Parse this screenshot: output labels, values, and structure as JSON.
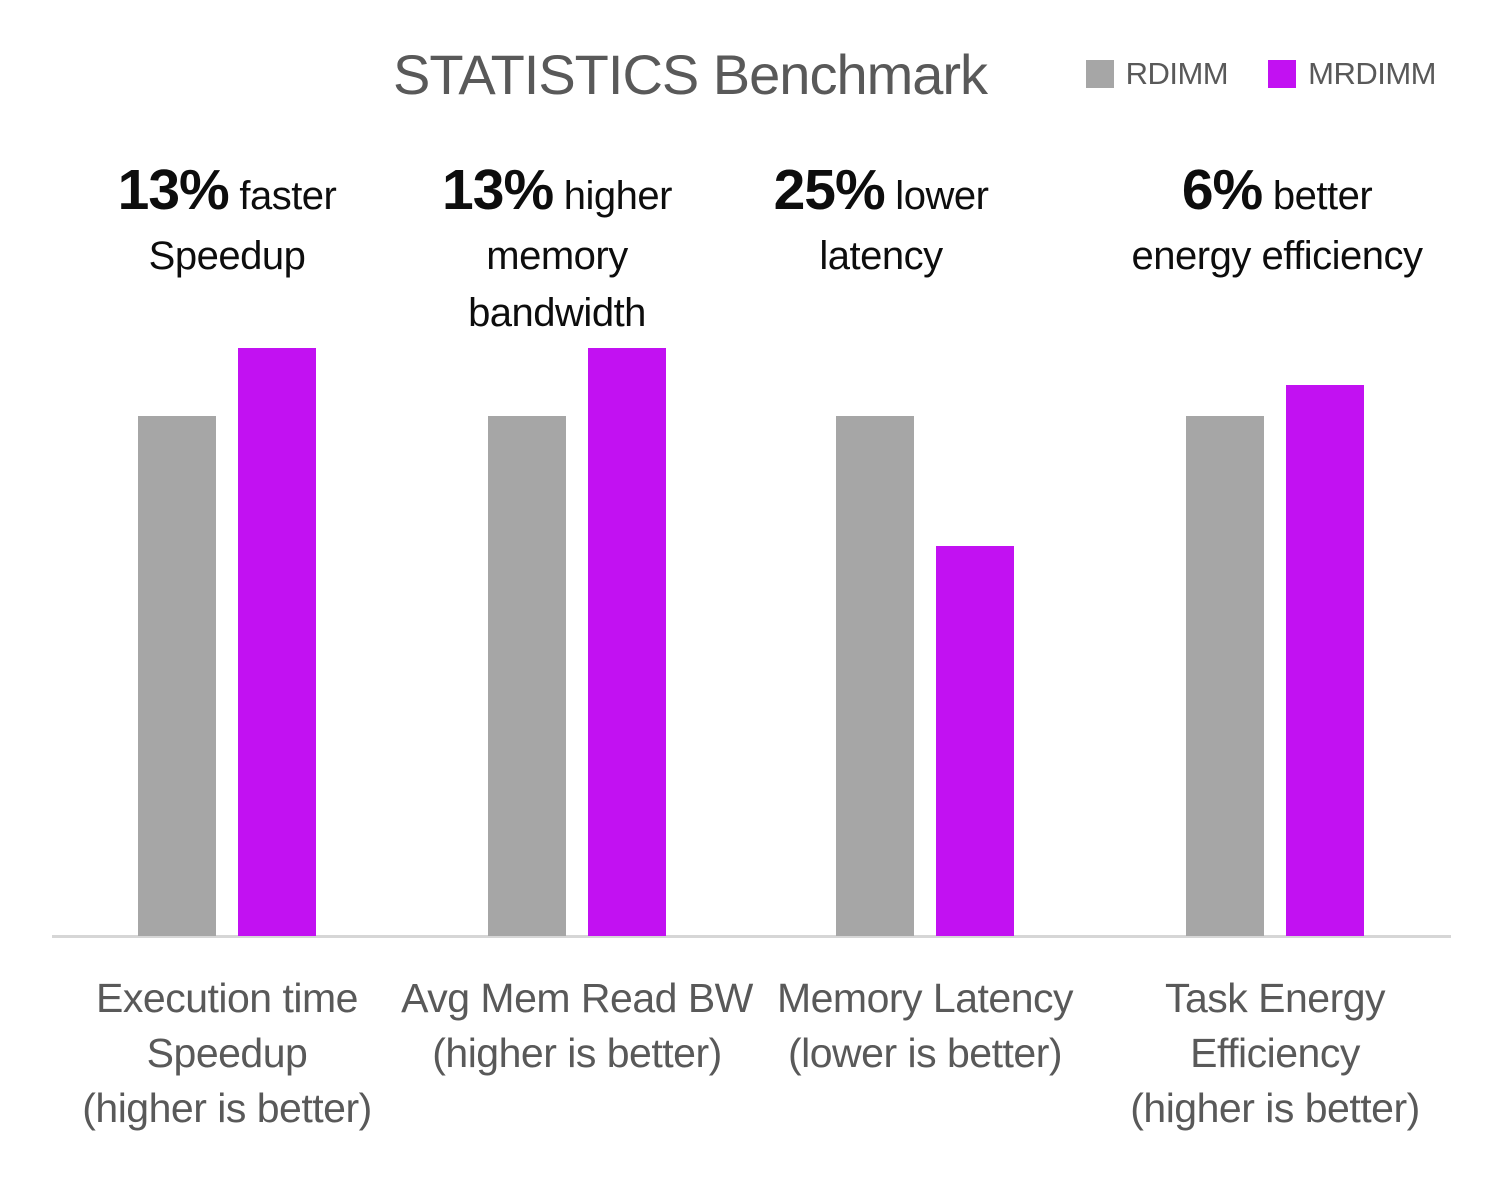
{
  "chart_data": {
    "type": "bar",
    "title": "STATISTICS Benchmark",
    "legend_position": "top-right",
    "grid": false,
    "y_axis_visible": false,
    "value_basis": "normalized, RDIMM = 1.0",
    "ylim": [
      0,
      1.2
    ],
    "categories": [
      "Execution time Speedup (higher is better)",
      "Avg Mem Read BW (higher is better)",
      "Memory Latency (lower is better)",
      "Task Energy Efficiency (higher is better)"
    ],
    "categories_lines": [
      [
        "Execution time",
        "Speedup",
        "(higher is better)"
      ],
      [
        "Avg Mem Read BW",
        "(higher is better)"
      ],
      [
        "Memory Latency",
        "(lower is better)"
      ],
      [
        "Task Energy",
        "Efficiency",
        "(higher is better)"
      ]
    ],
    "series": [
      {
        "name": "RDIMM",
        "color": "#a6a6a6",
        "values": [
          1.0,
          1.0,
          1.0,
          1.0
        ]
      },
      {
        "name": "MRDIMM",
        "color": "#c211f2",
        "values": [
          1.13,
          1.13,
          0.75,
          1.06
        ]
      }
    ],
    "annotations": [
      {
        "stat": "13%",
        "qualifier": "faster",
        "detail_lines": [
          "Speedup"
        ]
      },
      {
        "stat": "13%",
        "qualifier": "higher",
        "detail_lines": [
          "memory",
          "bandwidth"
        ]
      },
      {
        "stat": "25%",
        "qualifier": "lower",
        "detail_lines": [
          "latency"
        ]
      },
      {
        "stat": "6%",
        "qualifier": "better",
        "detail_lines": [
          "energy efficiency"
        ]
      }
    ]
  },
  "colors": {
    "background": "#ffffff",
    "title_text": "#595959",
    "category_text": "#595959",
    "annotation_text": "#0d0d0d",
    "axis_line": "#d6d6d6",
    "rdimm": "#a6a6a6",
    "mrdimm": "#c211f2"
  }
}
